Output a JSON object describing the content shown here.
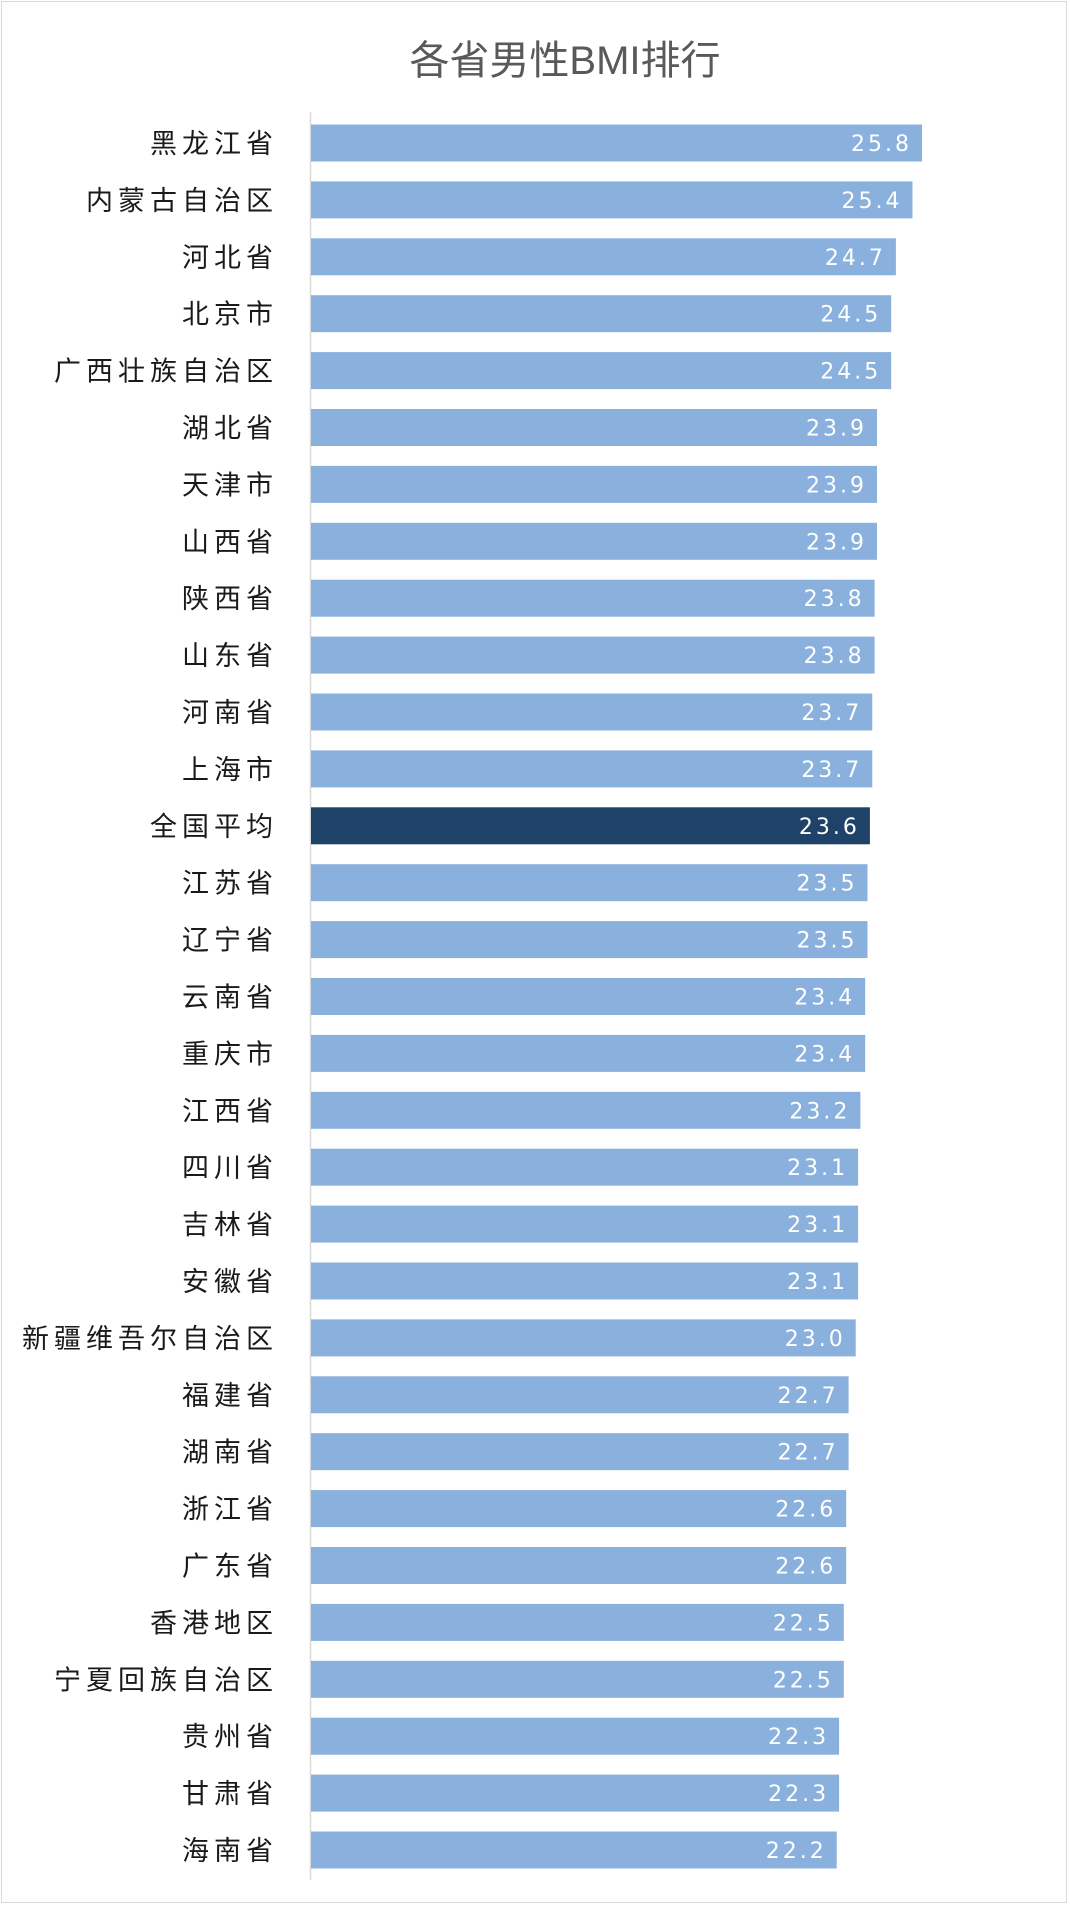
{
  "chart_data": {
    "type": "bar",
    "orientation": "horizontal",
    "title": "各省男性BMI排行",
    "xlabel": "",
    "ylabel": "",
    "xlim": [
      0,
      26
    ],
    "grid": false,
    "legend": "none",
    "colors": {
      "default": "#8AB1DD",
      "highlight": "#1F4268",
      "value_text": "#FFFFFF",
      "axis": "#D9D9D9"
    },
    "highlight_category": "全国平均",
    "categories": [
      "黑龙江省",
      "内蒙古自治区",
      "河北省",
      "北京市",
      "广西壮族自治区",
      "湖北省",
      "天津市",
      "山西省",
      "陕西省",
      "山东省",
      "河南省",
      "上海市",
      "全国平均",
      "江苏省",
      "辽宁省",
      "云南省",
      "重庆市",
      "江西省",
      "四川省",
      "吉林省",
      "安徽省",
      "新疆维吾尔自治区",
      "福建省",
      "湖南省",
      "浙江省",
      "广东省",
      "香港地区",
      "宁夏回族自治区",
      "贵州省",
      "甘肃省",
      "海南省"
    ],
    "values": [
      25.8,
      25.4,
      24.7,
      24.5,
      24.5,
      23.9,
      23.9,
      23.9,
      23.8,
      23.8,
      23.7,
      23.7,
      23.6,
      23.5,
      23.5,
      23.4,
      23.4,
      23.2,
      23.1,
      23.1,
      23.1,
      23.0,
      22.7,
      22.7,
      22.6,
      22.6,
      22.5,
      22.5,
      22.3,
      22.3,
      22.2
    ],
    "value_labels": [
      "25.8",
      "25.4",
      "24.7",
      "24.5",
      "24.5",
      "23.9",
      "23.9",
      "23.9",
      "23.8",
      "23.8",
      "23.7",
      "23.7",
      "23.6",
      "23.5",
      "23.5",
      "23.4",
      "23.4",
      "23.2",
      "23.1",
      "23.1",
      "23.1",
      "23.0",
      "22.7",
      "22.7",
      "22.6",
      "22.6",
      "22.5",
      "22.5",
      "22.3",
      "22.3",
      "22.2"
    ]
  }
}
